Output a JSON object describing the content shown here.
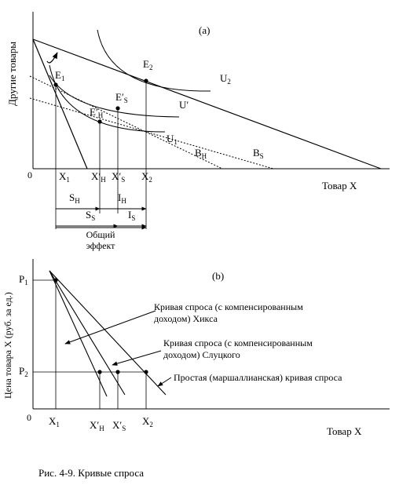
{
  "panel_a": {
    "label": "(a)",
    "y_axis_label": "Другие товары",
    "x_axis_label": "Товар X",
    "origin": "0",
    "points": {
      "e1": {
        "base": "E",
        "sub": "1"
      },
      "e2": {
        "base": "E",
        "sub": "2"
      },
      "es": {
        "base": "E′",
        "sub": "S"
      },
      "eh": {
        "base": "E′",
        "sub": "H"
      }
    },
    "curves": {
      "u2": {
        "base": "U",
        "sub": "2"
      },
      "uprime": {
        "base": "U′",
        "sub": ""
      },
      "u1": {
        "base": "U",
        "sub": "1"
      },
      "bh": {
        "base": "B",
        "sub": "H"
      },
      "bs": {
        "base": "B",
        "sub": "S"
      }
    },
    "x_ticks": [
      {
        "base": "X",
        "sub": "1"
      },
      {
        "base": "X′",
        "sub": "H"
      },
      {
        "base": "X′",
        "sub": "S"
      },
      {
        "base": "X",
        "sub": "2"
      }
    ]
  },
  "effects": {
    "sh": {
      "base": "S",
      "sub": "H"
    },
    "ih": {
      "base": "I",
      "sub": "H"
    },
    "ss": {
      "base": "S",
      "sub": "S"
    },
    "is": {
      "base": "I",
      "sub": "S"
    },
    "total_line1": "Общий",
    "total_line2": "эффект"
  },
  "panel_b": {
    "label": "(b)",
    "y_axis_label": "Цена товара X (руб. за  ед.)",
    "x_axis_label": "Товар X",
    "origin": "0",
    "p1": {
      "base": "P",
      "sub": "1"
    },
    "p2": {
      "base": "P",
      "sub": "2"
    },
    "x_ticks": [
      {
        "base": "X",
        "sub": "1"
      },
      {
        "base": "X′",
        "sub": "H"
      },
      {
        "base": "X′",
        "sub": "S"
      },
      {
        "base": "X",
        "sub": "2"
      }
    ],
    "annotations": {
      "hicks_line1": "Кривая спроса (с компенсированным",
      "hicks_line2": "доходом) Хикса",
      "slutsky_line1": "Кривая спроса (с компенсированным",
      "slutsky_line2": "доходом) Слуцкого",
      "marshall": "Простая (маршаллианская) кривая спроса"
    }
  },
  "caption": "Рис. 4-9. Кривые спроса"
}
